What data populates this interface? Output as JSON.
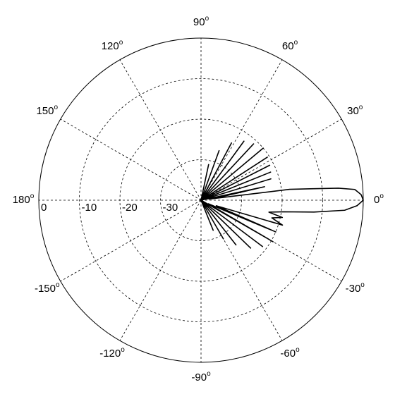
{
  "chart_data": {
    "type": "polar",
    "theta": [
      -80,
      -72,
      -68,
      -64,
      -60,
      -56,
      -52,
      -48,
      -44,
      -40,
      -37,
      -34,
      -30,
      -26,
      -23,
      -20,
      -17,
      -14,
      -12,
      -10,
      -8,
      -6,
      -4,
      -2,
      0,
      2,
      4,
      5,
      6,
      7,
      8,
      10,
      12,
      14,
      17,
      19.5,
      22,
      24.5,
      27,
      30,
      33,
      36.5,
      40,
      43.5,
      47,
      50.5,
      54,
      58,
      62,
      66,
      70,
      74,
      78,
      84,
      90
    ],
    "r": [
      -40,
      -40,
      -32,
      -40,
      -29,
      -40,
      -26,
      -40,
      -23,
      -40,
      -21,
      -40,
      -19.5,
      -38,
      -20,
      -36,
      -19,
      -22,
      -19.5,
      -23,
      -19.5,
      -12,
      -4.5,
      -1.5,
      0,
      -0.5,
      -2,
      -6,
      -13,
      -18,
      -38,
      -34,
      -24,
      -40,
      -22,
      -40,
      -21.5,
      -40,
      -21,
      -40,
      -20.5,
      -40,
      -20,
      -40,
      -21,
      -40,
      -22,
      -40,
      -24,
      -40,
      -27,
      -40,
      -31,
      -40,
      -40
    ],
    "color": "#000000",
    "rlim": [
      -40,
      0
    ],
    "rticks": [
      0,
      -10,
      -20,
      -30
    ],
    "thetaticks": [
      0,
      30,
      60,
      90,
      120,
      150,
      180,
      -150,
      -120,
      -90,
      -60,
      -30
    ],
    "degree_mark": "o",
    "grid": true
  }
}
